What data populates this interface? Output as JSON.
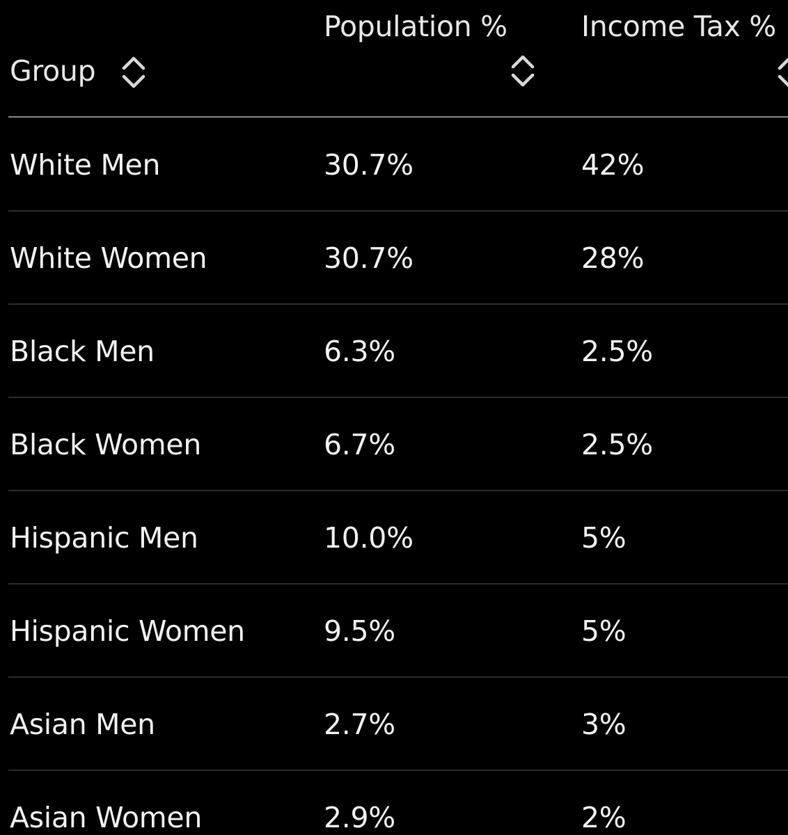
{
  "table": {
    "columns": [
      {
        "label": "Group",
        "sort_icon": "chevron-up-down-icon"
      },
      {
        "label": "Population %",
        "sort_icon": "chevron-up-down-icon"
      },
      {
        "label": "Income Tax %",
        "sort_icon": "chevron-up-down-icon"
      }
    ],
    "rows": [
      {
        "group": "White Men",
        "population": "30.7%",
        "income_tax": "42%"
      },
      {
        "group": "White Women",
        "population": "30.7%",
        "income_tax": "28%"
      },
      {
        "group": "Black Men",
        "population": "6.3%",
        "income_tax": "2.5%"
      },
      {
        "group": "Black Women",
        "population": "6.7%",
        "income_tax": "2.5%"
      },
      {
        "group": "Hispanic Men",
        "population": "10.0%",
        "income_tax": "5%"
      },
      {
        "group": "Hispanic Women",
        "population": "9.5%",
        "income_tax": "5%"
      },
      {
        "group": "Asian Men",
        "population": "2.7%",
        "income_tax": "3%"
      },
      {
        "group": "Asian Women",
        "population": "2.9%",
        "income_tax": "2%"
      }
    ]
  },
  "colors": {
    "background": "#000000",
    "text": "#f2f2f2",
    "header_rule": "#8a8a8a",
    "row_divider": "#2c2c2c"
  }
}
